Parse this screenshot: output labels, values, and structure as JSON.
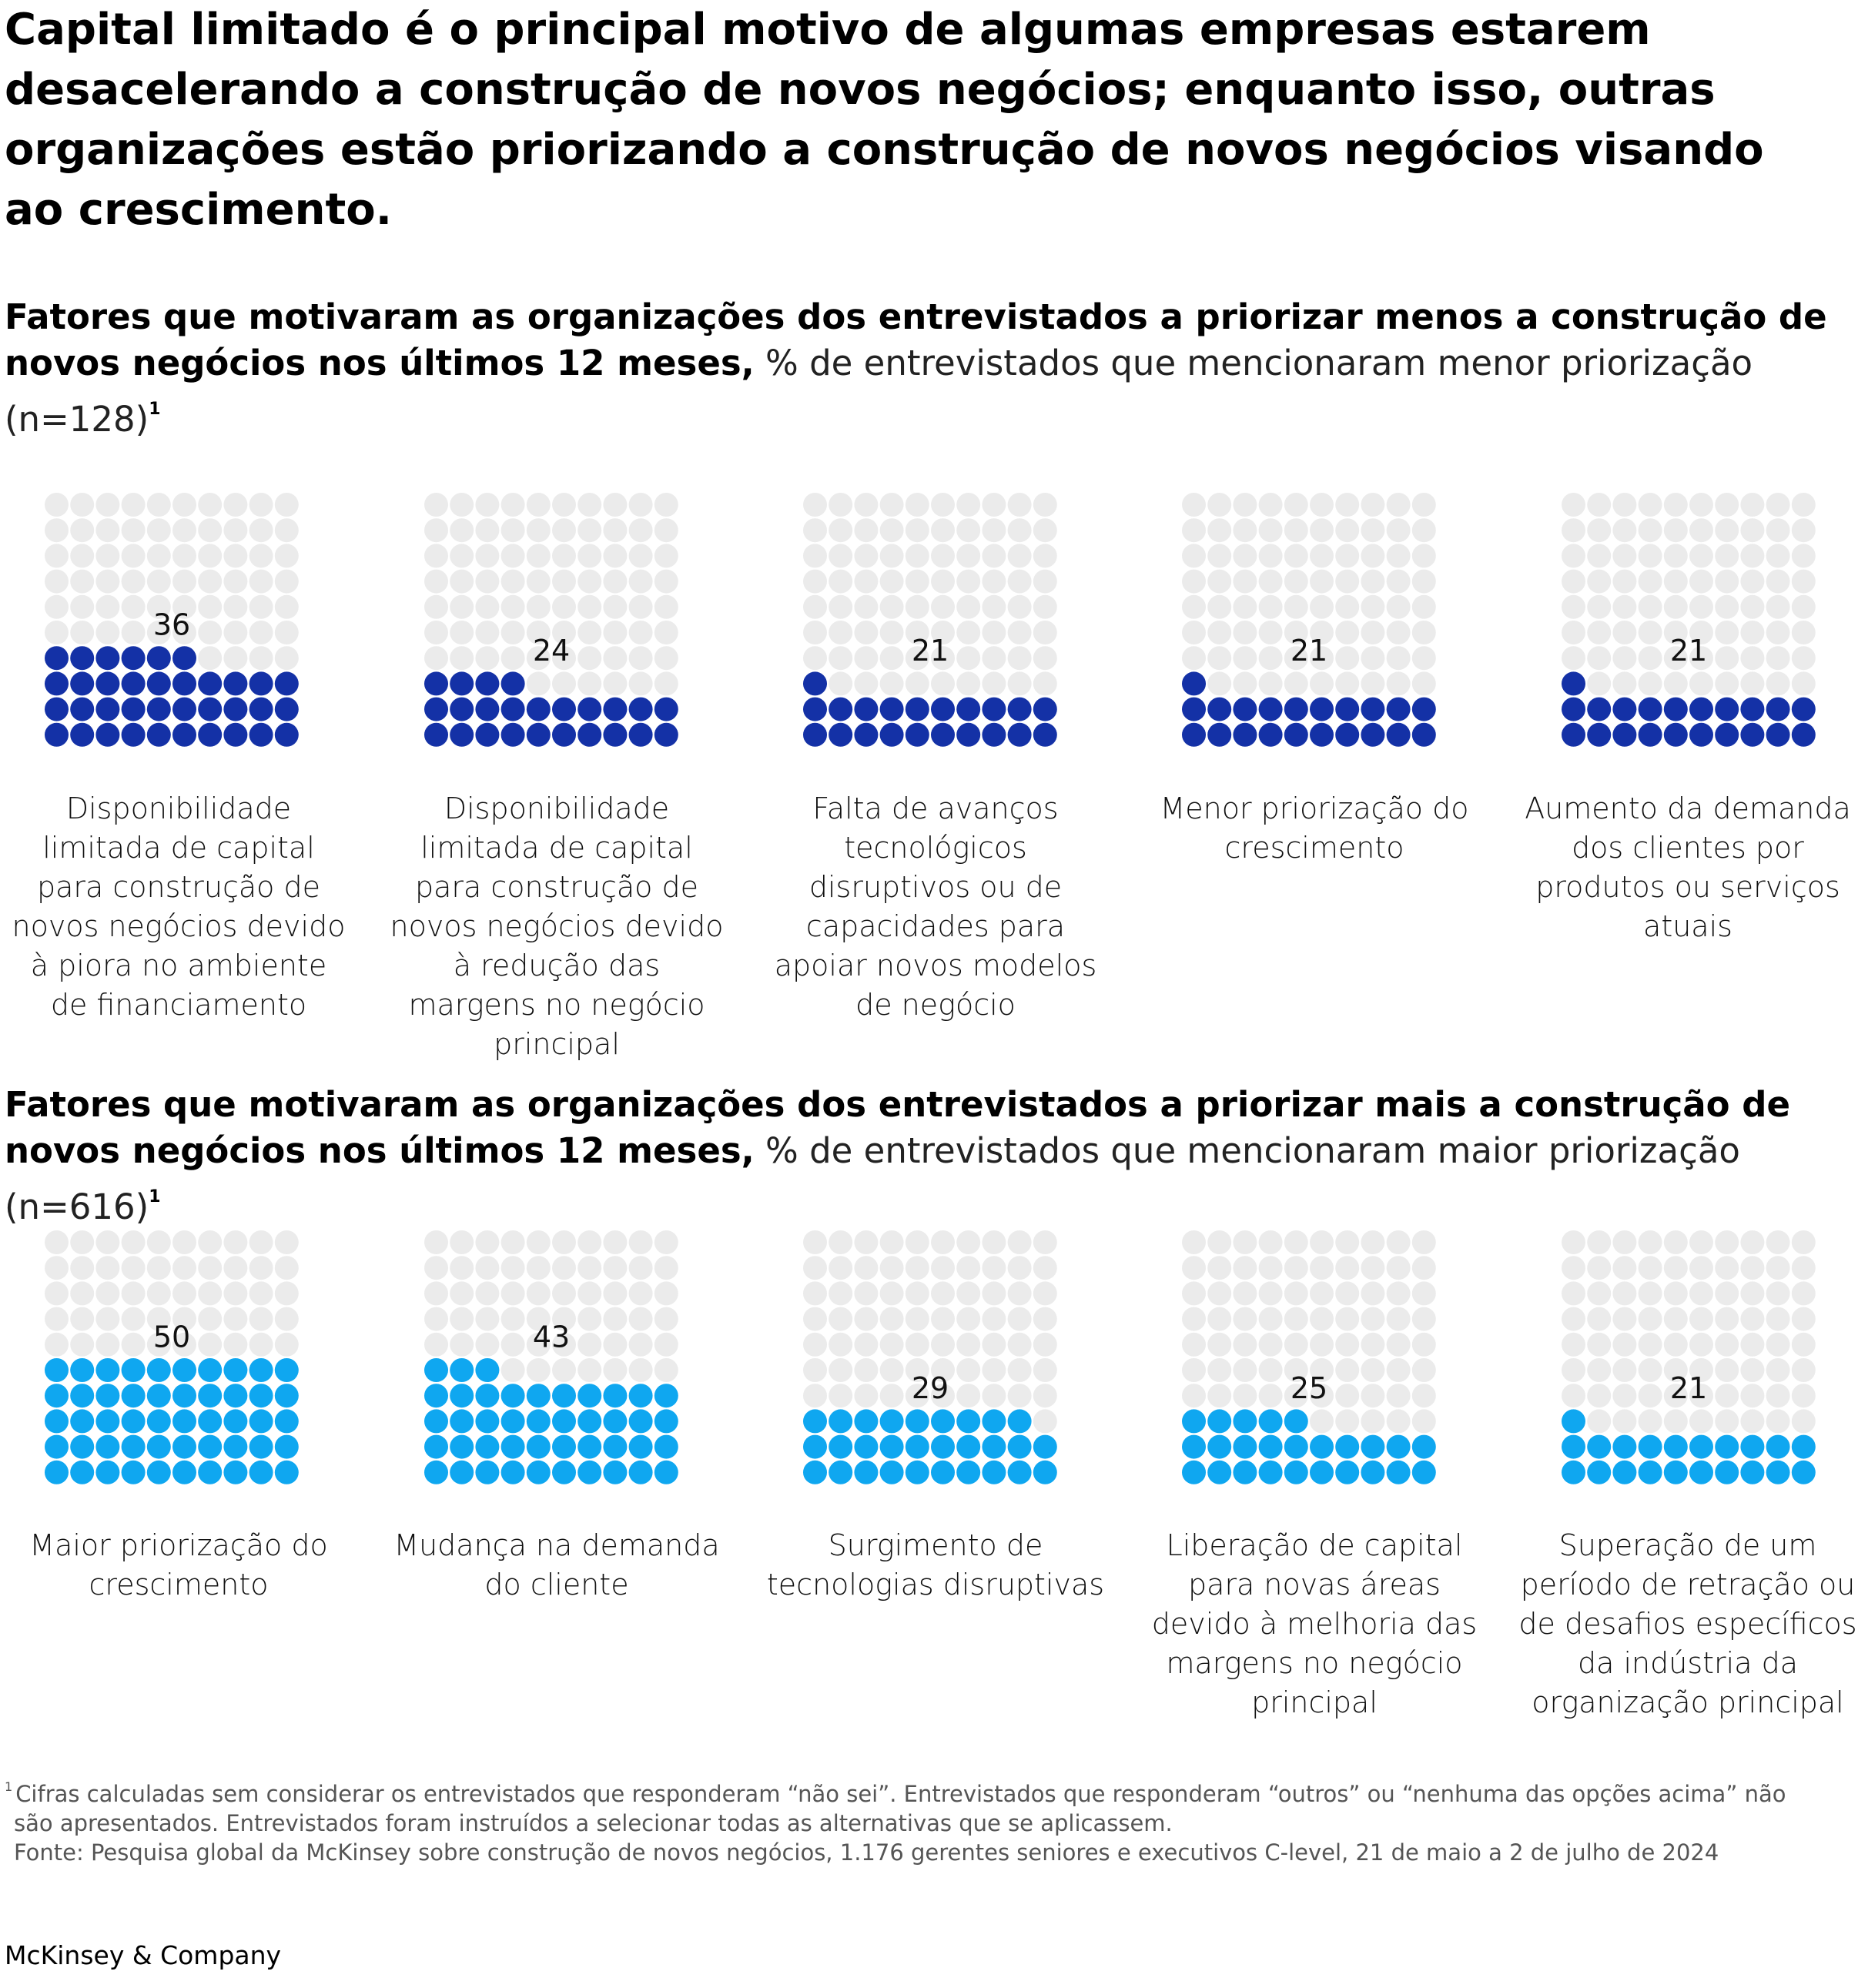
{
  "headline": "Capital limitado é o principal motivo de algumas empresas estarem desacelerando a construção de novos negócios; enquanto isso, outras organizações estão priorizando a construção de novos negócios visando ao crescimento.",
  "colors": {
    "empty_dot": "#ebebeb",
    "less_fill": "#1431a6",
    "more_fill": "#0fa7f0"
  },
  "sections": [
    {
      "title_bold": "Fatores que motivaram as organizações dos entrevistados a priorizar menos a construção de novos negócios nos últimos 12 meses,",
      "title_normal": " % de entrevistados que mencionaram menor priorização (n=128)",
      "title_sup": "1"
    },
    {
      "title_bold": "Fatores que motivaram as organizações dos entrevistados a priorizar mais a construção de novos negócios nos últimos 12 meses,",
      "title_normal": " % de entrevistados que mencionaram maior priorização (n=616)",
      "title_sup": "1"
    }
  ],
  "chart_data": [
    {
      "type": "waffle",
      "grid": "10x10",
      "unit": "%",
      "categories": [
        "Disponibilidade limitada de capital para construção de novos negócios devido à piora no ambiente de financiamento",
        "Disponibilidade limitada de capital para construção de novos negócios devido à redução das margens no negócio principal",
        "Falta de avanços tecnológicos disruptivos ou de capacidades para apoiar novos modelos de negócio",
        "Menor priorização do crescimento",
        "Aumento da demanda dos clientes por produtos ou serviços atuais"
      ],
      "values": [
        36,
        24,
        21,
        21,
        21
      ],
      "value_labels": [
        "36",
        "24",
        "21",
        "21",
        "21"
      ]
    },
    {
      "type": "waffle",
      "grid": "10x10",
      "unit": "%",
      "categories": [
        "Maior priorização do crescimento",
        "Mudança na demanda do cliente",
        "Surgimento de tecnologias disruptivas",
        "Liberação de capital para novas áreas devido à melhoria das margens no negócio principal",
        "Superação de um período de retração ou de desafios específicos da indústria da organização principal"
      ],
      "values": [
        50,
        43,
        29,
        25,
        21
      ],
      "value_labels": [
        "50",
        "43",
        "29",
        "25",
        "21"
      ]
    }
  ],
  "footnote": {
    "marker": "1",
    "line1": "Cifras calculadas sem considerar os entrevistados que responderam “não sei”. Entrevistados que responderam “outros” ou “nenhuma das opções acima” não",
    "line2": "são apresentados. Entrevistados foram instruídos a selecionar todas as alternativas que se aplicassem.",
    "source": "Fonte: Pesquisa global da McKinsey sobre construção de novos negócios, 1.176 gerentes seniores e executivos C-level, 21 de maio a 2 de julho de 2024"
  },
  "brand": "McKinsey & Company"
}
